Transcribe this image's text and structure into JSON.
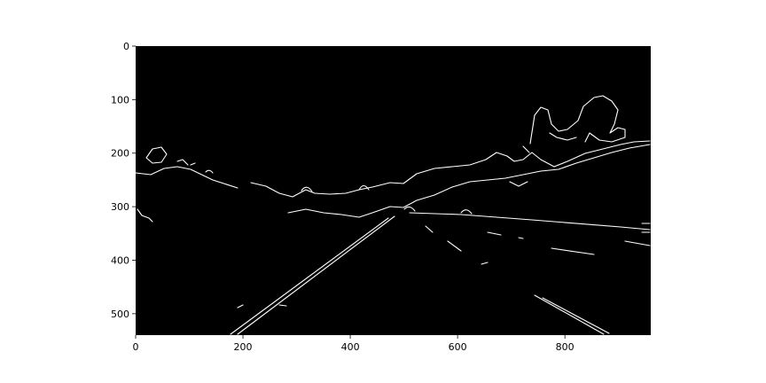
{
  "figure": {
    "image_description_hidden": "",
    "x_ticks": [
      "0",
      "200",
      "400",
      "600",
      "800"
    ],
    "y_ticks": [
      "0",
      "100",
      "200",
      "300",
      "400",
      "500"
    ],
    "x_tick_values": [
      0,
      200,
      400,
      600,
      800
    ],
    "y_tick_values": [
      0,
      100,
      200,
      300,
      400,
      500
    ],
    "x_range": [
      0,
      960
    ],
    "y_range": [
      0,
      540
    ],
    "colors": {
      "image_bg": "#000000",
      "edges": "#ffffff",
      "axes": "#000000",
      "page": "#ffffff"
    }
  }
}
